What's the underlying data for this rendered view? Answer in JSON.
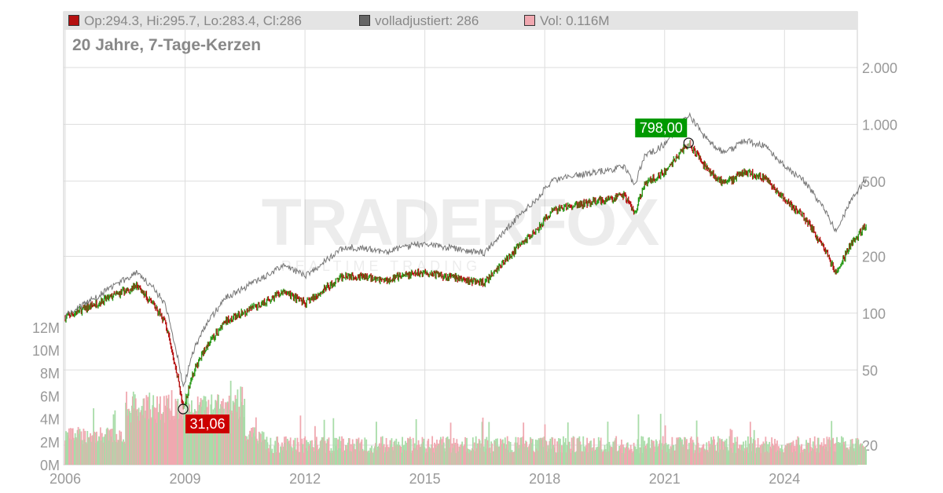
{
  "legend": {
    "ohlc": "Op:294.3, Hi:295.7, Lo:283.4, Cl:286",
    "adjusted": "volladjustiert: 286",
    "volume": "Vol: 0.116M",
    "colors": {
      "ohlc": "#b51010",
      "adjusted": "#666666",
      "volume": "#f0a8b0"
    }
  },
  "subtitle": "20 Jahre, 7-Tage-Kerzen",
  "watermark": {
    "brand": "TRADERFOX",
    "tagline": "REALTIME TRADING"
  },
  "chart_data": {
    "type": "line",
    "y_scale": "log",
    "x_ticks": [
      "2006",
      "2009",
      "2012",
      "2015",
      "2018",
      "2021",
      "2024"
    ],
    "y_ticks_right": [
      "2.000",
      "1.000",
      "500",
      "200",
      "100",
      "50",
      "20"
    ],
    "y_ticks_left": [
      "12M",
      "10M",
      "8M",
      "6M",
      "4M",
      "2M",
      "0M"
    ],
    "grid": true,
    "series": [
      {
        "kind": "candles",
        "x": [
          2006.0,
          2007.0,
          2007.8,
          2008.2,
          2008.5,
          2008.85,
          2008.95,
          2009.2,
          2009.5,
          2010,
          2011,
          2011.5,
          2012,
          2013,
          2014,
          2015,
          2016,
          2016.5,
          2017,
          2017.8,
          2018.2,
          2019,
          2020,
          2020.25,
          2020.5,
          2021,
          2021.6,
          2022,
          2022.5,
          2023,
          2023.5,
          2024,
          2024.5,
          2025,
          2025.3,
          2025.6,
          2026.0
        ],
        "close": [
          95,
          118,
          140,
          112,
          90,
          42,
          31.06,
          48,
          65,
          90,
          115,
          130,
          112,
          160,
          150,
          165,
          150,
          145,
          190,
          280,
          350,
          380,
          420,
          340,
          480,
          560,
          798,
          600,
          480,
          560,
          520,
          400,
          320,
          220,
          160,
          220,
          286
        ]
      },
      {
        "kind": "adjusted",
        "ratio_x": [
          2006,
          2009,
          2012,
          2018,
          2021,
          2024,
          2026
        ],
        "ratio": [
          1.02,
          1.3,
          1.4,
          1.45,
          1.4,
          1.5,
          1.75
        ]
      }
    ],
    "volume_range_M": [
      0,
      14
    ],
    "annotations": [
      {
        "label": "31,06",
        "x": 2008.95,
        "y": 31.06,
        "color": "#cc0000"
      },
      {
        "label": "798,00",
        "x": 2021.6,
        "y": 798,
        "color": "#009900"
      }
    ]
  }
}
